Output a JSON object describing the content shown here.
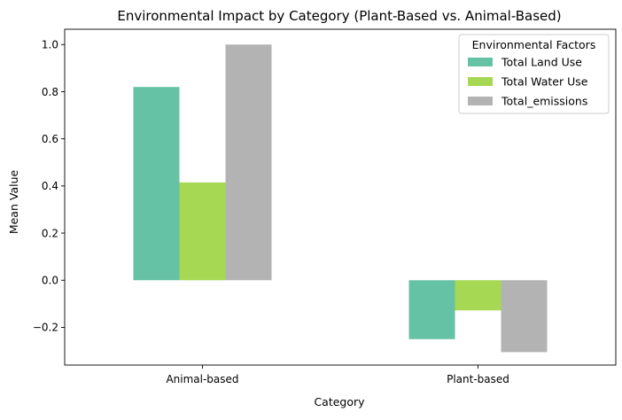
{
  "chart_data": {
    "type": "bar",
    "title": "Environmental Impact by Category (Plant-Based vs. Animal-Based)",
    "xlabel": "Category",
    "ylabel": "Mean Value",
    "categories": [
      "Animal-based",
      "Plant-based"
    ],
    "series": [
      {
        "name": "Total Land Use",
        "values": [
          0.82,
          -0.25
        ],
        "color": "#66c2a5"
      },
      {
        "name": "Total Water Use",
        "values": [
          0.415,
          -0.128
        ],
        "color": "#a6d854"
      },
      {
        "name": "Total_emissions",
        "values": [
          1.0,
          -0.305
        ],
        "color": "#b3b3b3"
      }
    ],
    "ylim": [
      -0.36,
      1.065
    ],
    "yticks": [
      -0.2,
      0.0,
      0.2,
      0.4,
      0.6,
      0.8,
      1.0
    ],
    "ytick_labels": [
      "−0.2",
      "0.0",
      "0.2",
      "0.4",
      "0.6",
      "0.8",
      "1.0"
    ],
    "grid": false,
    "legend": {
      "title": "Environmental Factors",
      "position": "top-right"
    }
  }
}
